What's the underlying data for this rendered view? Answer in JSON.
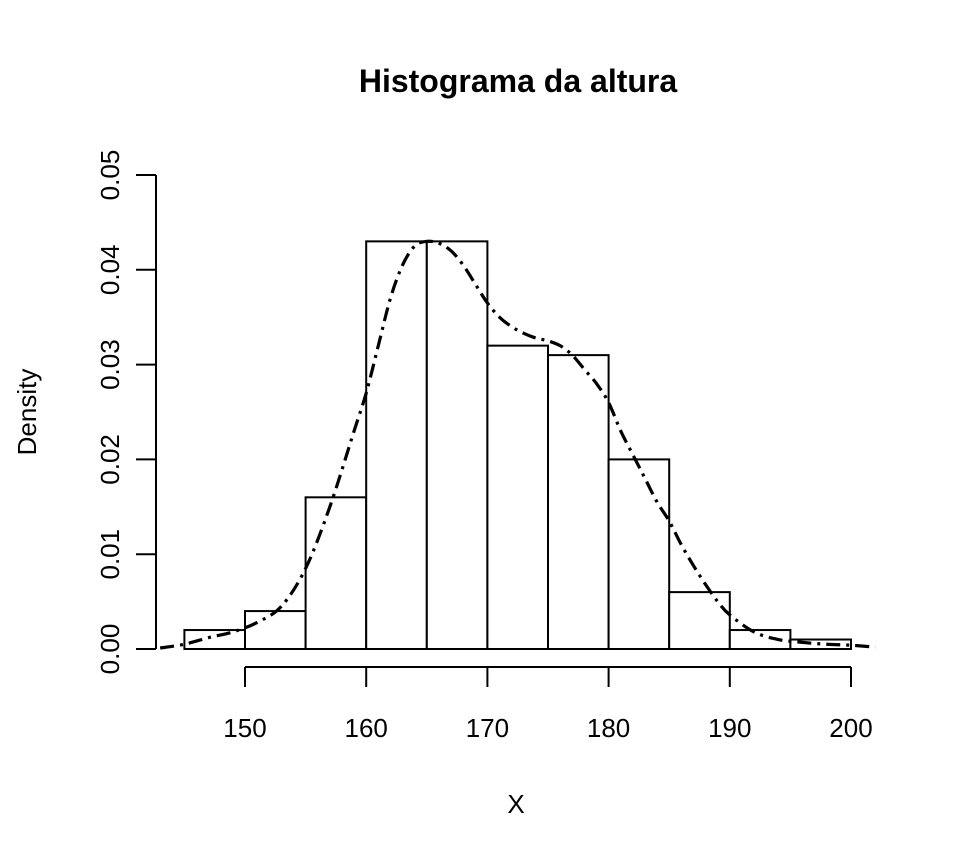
{
  "chart_data": {
    "type": "bar",
    "title": "Histograma da altura",
    "xlabel": "X",
    "ylabel": "Density",
    "xlim": [
      143,
      202
    ],
    "ylim": [
      0,
      0.05
    ],
    "x_ticks": [
      150,
      160,
      170,
      180,
      190,
      200
    ],
    "x_tick_labels": [
      "150",
      "160",
      "170",
      "180",
      "190",
      "200"
    ],
    "y_ticks": [
      0,
      0.01,
      0.02,
      0.03,
      0.04,
      0.05
    ],
    "y_tick_labels": [
      "0.00",
      "0.01",
      "0.02",
      "0.03",
      "0.04",
      "0.05"
    ],
    "grid": false,
    "bins": [
      {
        "x0": 145,
        "x1": 150,
        "density": 0.002
      },
      {
        "x0": 150,
        "x1": 155,
        "density": 0.004
      },
      {
        "x0": 155,
        "x1": 160,
        "density": 0.016
      },
      {
        "x0": 160,
        "x1": 165,
        "density": 0.043
      },
      {
        "x0": 165,
        "x1": 170,
        "density": 0.043
      },
      {
        "x0": 170,
        "x1": 175,
        "density": 0.032
      },
      {
        "x0": 175,
        "x1": 180,
        "density": 0.031
      },
      {
        "x0": 180,
        "x1": 185,
        "density": 0.02
      },
      {
        "x0": 185,
        "x1": 190,
        "density": 0.006
      },
      {
        "x0": 190,
        "x1": 195,
        "density": 0.002
      },
      {
        "x0": 195,
        "x1": 200,
        "density": 0.001
      }
    ],
    "density_curve": {
      "line_style": "dot-dash",
      "x": [
        143,
        145,
        147,
        149,
        151,
        153,
        155,
        157,
        159,
        160,
        161,
        162,
        163,
        164,
        165,
        166,
        167,
        168,
        169,
        170,
        171,
        172,
        173,
        174,
        175,
        176,
        177,
        178,
        179,
        180,
        181,
        182,
        183,
        184,
        185,
        186,
        187,
        188,
        189,
        190,
        192,
        194,
        196,
        198,
        200,
        202
      ],
      "y": [
        0.0001,
        0.0005,
        0.0012,
        0.0018,
        0.0028,
        0.0045,
        0.0085,
        0.015,
        0.023,
        0.027,
        0.032,
        0.037,
        0.0405,
        0.0425,
        0.043,
        0.0428,
        0.042,
        0.0405,
        0.0385,
        0.0365,
        0.035,
        0.034,
        0.0333,
        0.0328,
        0.0325,
        0.032,
        0.031,
        0.0295,
        0.028,
        0.026,
        0.023,
        0.0205,
        0.018,
        0.0155,
        0.0135,
        0.011,
        0.0088,
        0.0068,
        0.005,
        0.0036,
        0.0018,
        0.001,
        0.0007,
        0.0005,
        0.0004,
        0.0002
      ]
    }
  }
}
